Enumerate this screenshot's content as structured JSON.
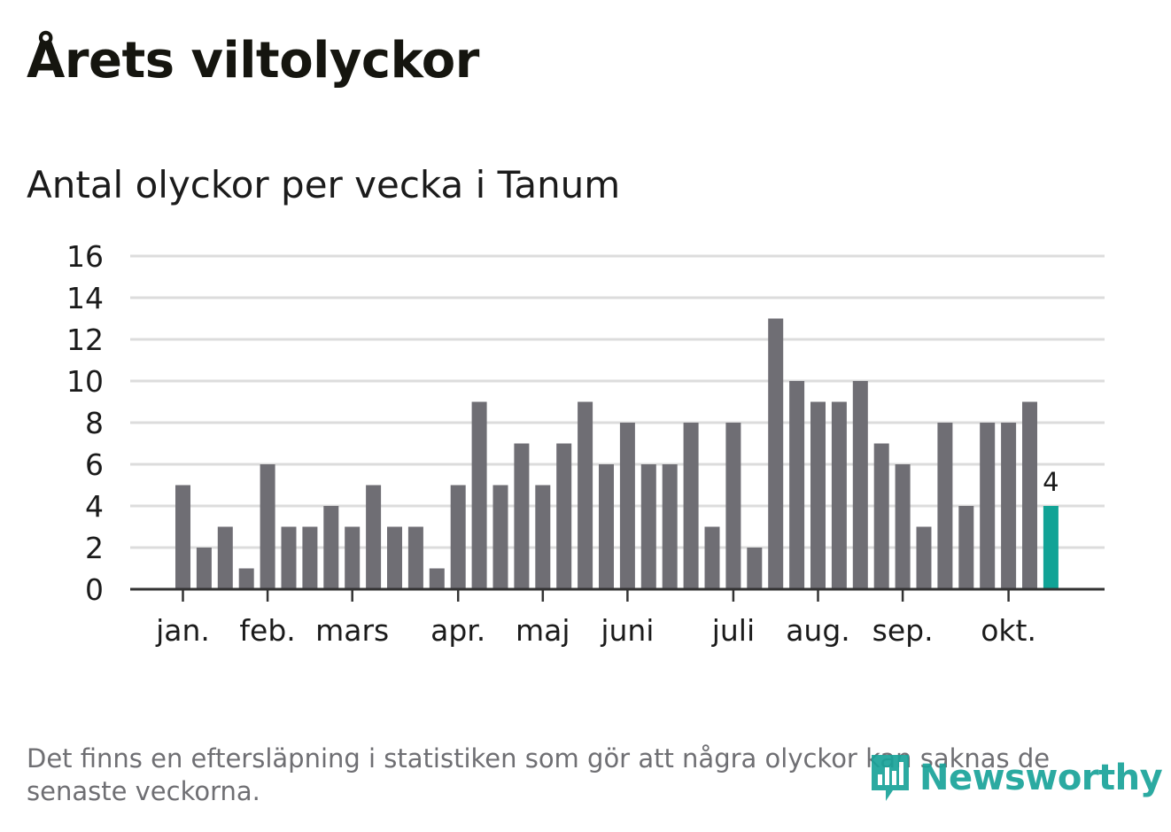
{
  "title": "Årets viltolyckor",
  "subtitle": "Antal olyckor per vecka i Tanum",
  "footnote": "Det finns en eftersläpning i statistiken som gör att några olyckor kan saknas de senaste veckorna.",
  "logo": {
    "text": "Newsworthy",
    "icon": "bar-chart-icon"
  },
  "colors": {
    "bar": "#6f6e74",
    "highlight": "#11a396",
    "grid": "#dcdcdc",
    "axis": "#333333"
  },
  "chart_data": {
    "type": "bar",
    "title": "Antal olyckor per vecka i Tanum",
    "xlabel": "",
    "ylabel": "",
    "ylim": [
      0,
      16
    ],
    "y_ticks": [
      0,
      2,
      4,
      6,
      8,
      10,
      12,
      14,
      16
    ],
    "grid": true,
    "weeks": [
      1,
      2,
      3,
      4,
      5,
      6,
      7,
      8,
      9,
      10,
      11,
      12,
      13,
      14,
      15,
      16,
      17,
      18,
      19,
      20,
      21,
      22,
      23,
      24,
      25,
      26,
      27,
      28,
      29,
      30,
      31,
      32,
      33,
      34,
      35,
      36,
      37,
      38,
      39,
      40,
      41,
      42
    ],
    "values": [
      5,
      2,
      3,
      1,
      6,
      3,
      3,
      4,
      3,
      5,
      3,
      3,
      1,
      5,
      9,
      5,
      7,
      5,
      7,
      9,
      6,
      8,
      6,
      6,
      8,
      3,
      8,
      2,
      13,
      10,
      9,
      9,
      10,
      7,
      6,
      3,
      8,
      4,
      8,
      8,
      9,
      4
    ],
    "highlight_last": true,
    "last_value_label": "4",
    "month_ticks": [
      {
        "label": "jan.",
        "week": 1
      },
      {
        "label": "feb.",
        "week": 5
      },
      {
        "label": "mars",
        "week": 9
      },
      {
        "label": "apr.",
        "week": 14
      },
      {
        "label": "maj",
        "week": 18
      },
      {
        "label": "juni",
        "week": 22
      },
      {
        "label": "juli",
        "week": 27
      },
      {
        "label": "aug.",
        "week": 31
      },
      {
        "label": "sep.",
        "week": 35
      },
      {
        "label": "okt.",
        "week": 40
      }
    ]
  }
}
